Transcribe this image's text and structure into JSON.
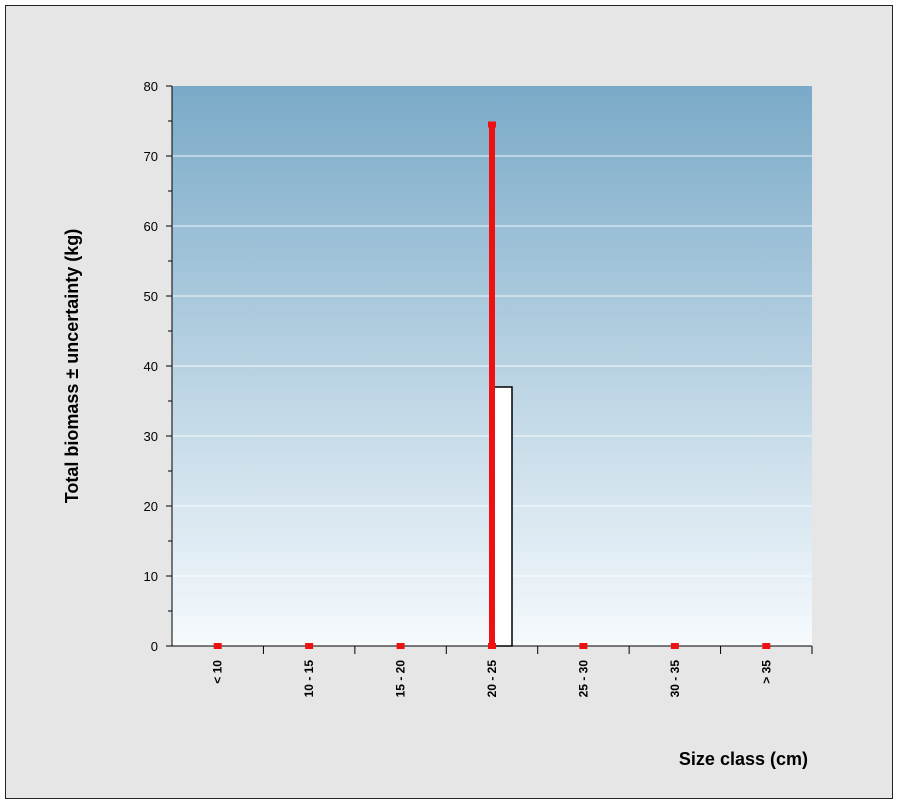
{
  "chart_data": {
    "type": "bar",
    "title": "",
    "xlabel": "Size class (cm)",
    "ylabel": "Total biomass ± uncertainty (kg)",
    "categories": [
      "< 10",
      "10 - 15",
      "15 - 20",
      "20 - 25",
      "25 - 30",
      "30 - 35",
      "> 35"
    ],
    "values": [
      0,
      0,
      0,
      37,
      0,
      0,
      0
    ],
    "error_low": [
      0,
      0,
      0,
      0,
      0,
      0,
      0
    ],
    "error_high": [
      0,
      0,
      0,
      74.5,
      0,
      0,
      0
    ],
    "ylim": [
      0,
      80
    ],
    "yticks": [
      "0",
      "10",
      "20",
      "30",
      "40",
      "50",
      "60",
      "70",
      "80"
    ],
    "grid": true,
    "legend": "none",
    "colors": {
      "plot_top": "#7aaac8",
      "plot_bottom": "#f6fafd",
      "bar_fill": "#ffffff",
      "bar_stroke": "#000000",
      "error_bar": "#ee1111",
      "gridline": "#ffffff",
      "frame_bg": "#e6e6e6"
    }
  }
}
